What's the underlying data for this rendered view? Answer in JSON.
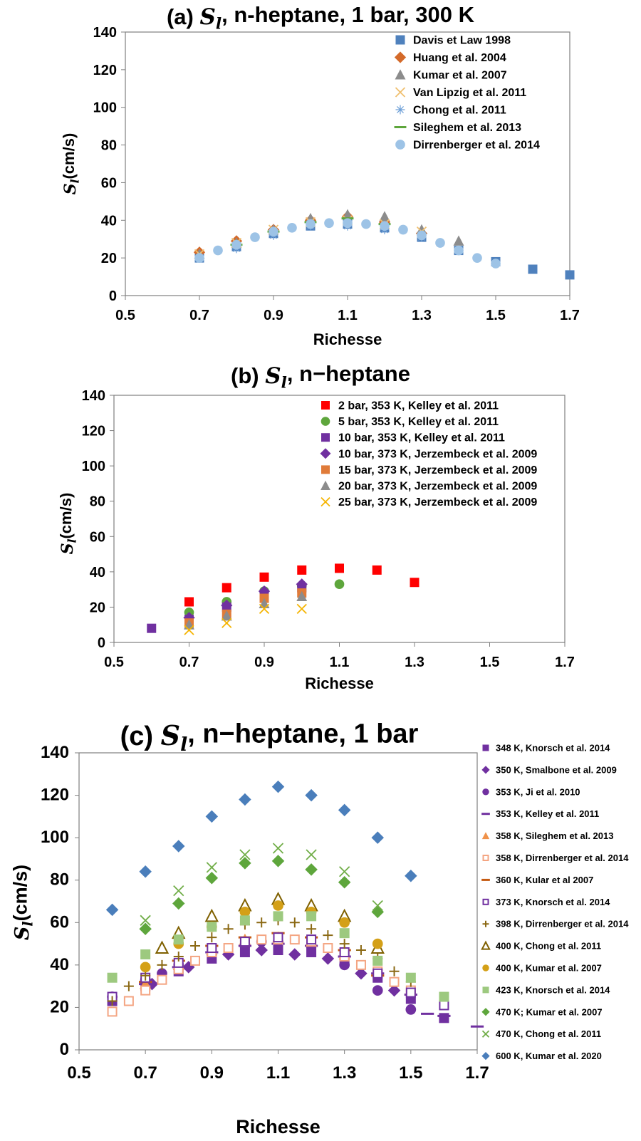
{
  "chart_data": [
    {
      "type": "scatter",
      "title": "(a) S_l, n-heptane, 1 bar, 300 K",
      "title_prefix": "(a) ",
      "title_symbol": "S",
      "title_sub": "l",
      "title_rest": ", n-heptane, 1 bar, 300 K",
      "xlabel": "Richesse",
      "ylabel_symbol": "S",
      "ylabel_sub": "l",
      "ylabel_rest": "(cm/s)",
      "xlim": [
        0.5,
        1.7
      ],
      "ylim": [
        0,
        140
      ],
      "xticks": [
        "0.5",
        "0.7",
        "0.9",
        "1.1",
        "1.3",
        "1.5",
        "1.7"
      ],
      "yticks": [
        "0",
        "20",
        "40",
        "60",
        "80",
        "100",
        "120",
        "140"
      ],
      "legend_position": "top-right",
      "series": [
        {
          "name": "Davis et Law 1998",
          "marker": "square",
          "color": "#4f81bd",
          "x": [
            0.7,
            0.8,
            0.9,
            1.0,
            1.1,
            1.2,
            1.3,
            1.4,
            1.5,
            1.6,
            1.7
          ],
          "y": [
            20,
            26,
            33,
            37,
            38,
            36,
            31,
            24,
            18,
            14,
            11
          ]
        },
        {
          "name": "Huang et al. 2004",
          "marker": "diamond",
          "color": "#d46a2a",
          "x": [
            0.7,
            0.8,
            0.9,
            1.0,
            1.1,
            1.2,
            1.3
          ],
          "y": [
            23,
            29,
            35,
            40,
            42,
            39,
            33
          ]
        },
        {
          "name": "Kumar et al. 2007",
          "marker": "triangle",
          "color": "#8c8c8c",
          "x": [
            0.7,
            0.8,
            0.9,
            1.0,
            1.1,
            1.2,
            1.3,
            1.4
          ],
          "y": [
            22,
            28,
            35,
            41,
            43,
            42,
            35,
            29
          ]
        },
        {
          "name": "Van Lipzig et al. 2011",
          "marker": "x",
          "color": "#f0c070",
          "x": [
            0.7,
            0.8,
            0.9,
            1.0,
            1.1,
            1.2,
            1.3
          ],
          "y": [
            22,
            28,
            35,
            39,
            40,
            38,
            34
          ]
        },
        {
          "name": "Chong et al. 2011",
          "marker": "asterisk",
          "color": "#6fa0d8",
          "x": [
            0.7,
            0.8,
            0.9,
            1.0,
            1.1,
            1.2,
            1.3,
            1.4
          ],
          "y": [
            20,
            25,
            32,
            37,
            37,
            35,
            31,
            24
          ]
        },
        {
          "name": "Sileghem et al. 2013",
          "marker": "dash",
          "color": "#5ea63c",
          "x": [
            0.8,
            0.9,
            1.0,
            1.1,
            1.2
          ],
          "y": [
            27,
            34,
            39,
            41,
            38
          ]
        },
        {
          "name": "Dirrenberger et al. 2014",
          "marker": "circle",
          "color": "#9dc3e6",
          "x": [
            0.7,
            0.75,
            0.8,
            0.85,
            0.9,
            0.95,
            1.0,
            1.05,
            1.1,
            1.15,
            1.2,
            1.25,
            1.3,
            1.35,
            1.4,
            1.45,
            1.5
          ],
          "y": [
            20,
            24,
            27,
            31,
            34,
            36,
            38,
            38.5,
            38.5,
            38,
            37,
            35,
            32,
            28,
            24,
            20,
            17
          ]
        }
      ]
    },
    {
      "type": "scatter",
      "title": "(b) S_l, n−heptane",
      "title_prefix": "(b) ",
      "title_symbol": "S",
      "title_sub": "l",
      "title_rest": ", n−heptane",
      "xlabel": "Richesse",
      "ylabel_symbol": "S",
      "ylabel_sub": "l",
      "ylabel_rest": "(cm/s)",
      "xlim": [
        0.5,
        1.7
      ],
      "ylim": [
        0,
        140
      ],
      "xticks": [
        "0.5",
        "0.7",
        "0.9",
        "1.1",
        "1.3",
        "1.5",
        "1.7"
      ],
      "yticks": [
        "0",
        "20",
        "40",
        "60",
        "80",
        "100",
        "120",
        "140"
      ],
      "legend_position": "top-right",
      "series": [
        {
          "name": "2 bar, 353 K, Kelley et al. 2011",
          "marker": "square",
          "color": "#ff0000",
          "x": [
            0.7,
            0.8,
            0.9,
            1.0,
            1.1,
            1.2,
            1.3
          ],
          "y": [
            23,
            31,
            37,
            41,
            42,
            41,
            34
          ]
        },
        {
          "name": "5 bar, 353 K, Kelley et al. 2011",
          "marker": "circle",
          "color": "#5ea63c",
          "x": [
            0.7,
            0.8,
            0.9,
            1.0,
            1.1
          ],
          "y": [
            17,
            23,
            29,
            32,
            33
          ]
        },
        {
          "name": "10 bar, 353 K, Kelley et al. 2011",
          "marker": "square",
          "color": "#7030a0",
          "x": [
            0.6,
            0.7,
            0.8,
            0.9,
            1.0
          ],
          "y": [
            8,
            13,
            20,
            27,
            31
          ]
        },
        {
          "name": "10 bar, 373 K, Jerzembeck et al. 2009",
          "marker": "diamond",
          "color": "#7030a0",
          "x": [
            0.7,
            0.8,
            0.9,
            1.0
          ],
          "y": [
            14,
            21,
            29,
            33
          ]
        },
        {
          "name": "15 bar, 373 K, Jerzembeck et al. 2009",
          "marker": "square",
          "color": "#e07b39",
          "x": [
            0.7,
            0.8,
            0.9,
            1.0
          ],
          "y": [
            11,
            16,
            25,
            28
          ]
        },
        {
          "name": "20 bar, 373 K, Jerzembeck et al. 2009",
          "marker": "triangle",
          "color": "#8c8c8c",
          "x": [
            0.7,
            0.8,
            0.9,
            1.0
          ],
          "y": [
            10,
            15,
            22,
            26
          ]
        },
        {
          "name": "25 bar, 373 K, Jerzembeck et al. 2009",
          "marker": "x",
          "color": "#f5b400",
          "x": [
            0.7,
            0.8,
            0.9,
            1.0
          ],
          "y": [
            7,
            11,
            19,
            19
          ]
        }
      ]
    },
    {
      "type": "scatter",
      "title": "(c) S_l, n−heptane, 1 bar",
      "title_prefix": "(c) ",
      "title_symbol": "S",
      "title_sub": "l",
      "title_rest": ", n−heptane, 1 bar",
      "xlabel": "Richesse",
      "ylabel_symbol": "S",
      "ylabel_sub": "l",
      "ylabel_rest": "(cm/s)",
      "xlim": [
        0.5,
        1.7
      ],
      "ylim": [
        0,
        140
      ],
      "xticks": [
        "0.5",
        "0.7",
        "0.9",
        "1.1",
        "1.3",
        "1.5",
        "1.7"
      ],
      "yticks": [
        "0",
        "20",
        "40",
        "60",
        "80",
        "100",
        "120",
        "140"
      ],
      "legend_position": "right",
      "series": [
        {
          "name": "348 K, Knorsch et al. 2014",
          "marker": "square",
          "color": "#7030a0",
          "x": [
            0.6,
            0.7,
            0.8,
            0.9,
            1.0,
            1.1,
            1.2,
            1.3,
            1.4,
            1.5,
            1.6
          ],
          "y": [
            23,
            30,
            37,
            43,
            46,
            47,
            46,
            42,
            34,
            24,
            15
          ]
        },
        {
          "name": "350 K, Smalbone et al. 2009",
          "marker": "diamond",
          "color": "#7030a0",
          "x": [
            0.72,
            0.83,
            0.95,
            1.05,
            1.15,
            1.25,
            1.35,
            1.45
          ],
          "y": [
            31,
            39,
            45,
            47,
            45,
            43,
            36,
            28
          ]
        },
        {
          "name": "353 K, Ji et al. 2010",
          "marker": "circle",
          "color": "#7030a0",
          "x": [
            0.6,
            0.7,
            0.75,
            0.8,
            0.9,
            1.0,
            1.05,
            1.1,
            1.2,
            1.3,
            1.4,
            1.5
          ],
          "y": [
            25,
            33,
            36,
            40,
            45,
            49,
            51,
            51,
            49,
            40,
            28,
            19
          ]
        },
        {
          "name": "353 K, Kelley et al. 2011",
          "marker": "dash",
          "color": "#7030a0",
          "x": [
            0.7,
            0.8,
            0.9,
            1.0,
            1.1,
            1.2,
            1.3,
            1.4,
            1.5,
            1.55,
            1.6,
            1.7
          ],
          "y": [
            31,
            39,
            46,
            49,
            50,
            49,
            44,
            36,
            26,
            17,
            16,
            11
          ]
        },
        {
          "name": "358 K, Sileghem et al. 2013",
          "marker": "triangle",
          "color": "#f0924a",
          "x": [
            0.7,
            0.8,
            0.9,
            1.0,
            1.1,
            1.2,
            1.3
          ],
          "y": [
            31,
            40,
            47,
            52,
            53,
            51,
            45
          ]
        },
        {
          "name": "358 K, Dirrenberger et al. 2014",
          "marker": "square-open",
          "color": "#f4a582",
          "x": [
            0.6,
            0.65,
            0.7,
            0.75,
            0.8,
            0.85,
            0.9,
            0.95,
            1.0,
            1.05,
            1.1,
            1.15,
            1.2,
            1.25,
            1.3,
            1.35,
            1.4,
            1.45,
            1.5
          ],
          "y": [
            18,
            23,
            28,
            33,
            38,
            42,
            46,
            48,
            51,
            52,
            52,
            52,
            51,
            48,
            44,
            40,
            37,
            32,
            28
          ]
        },
        {
          "name": "360 K, Kular et al 2007",
          "marker": "dash",
          "color": "#c55a11",
          "x": [
            0.7,
            0.8,
            0.9,
            1.0,
            1.1,
            1.2,
            1.3,
            1.4
          ],
          "y": [
            32,
            42,
            49,
            53,
            55,
            53,
            47,
            35
          ]
        },
        {
          "name": "373 K, Knorsch et al. 2014",
          "marker": "square-open",
          "color": "#7030a0",
          "x": [
            0.6,
            0.7,
            0.8,
            0.9,
            1.0,
            1.1,
            1.2,
            1.3,
            1.4,
            1.5,
            1.6
          ],
          "y": [
            25,
            34,
            41,
            48,
            51,
            53,
            52,
            46,
            36,
            27,
            21
          ]
        },
        {
          "name": "398 K, Dirrenberger et al. 2014",
          "marker": "plus",
          "color": "#8b6914",
          "x": [
            0.6,
            0.65,
            0.7,
            0.75,
            0.8,
            0.85,
            0.9,
            0.95,
            1.0,
            1.05,
            1.1,
            1.15,
            1.2,
            1.25,
            1.3,
            1.35,
            1.4,
            1.45,
            1.5
          ],
          "y": [
            23,
            30,
            35,
            40,
            44,
            49,
            53,
            57,
            59,
            60,
            61,
            60,
            57,
            54,
            50,
            47,
            43,
            37,
            32
          ]
        },
        {
          "name": "400 K, Chong et al. 2011",
          "marker": "triangle-open",
          "color": "#7f6000",
          "x": [
            0.75,
            0.8,
            0.9,
            1.0,
            1.1,
            1.2,
            1.3,
            1.4
          ],
          "y": [
            48,
            55,
            63,
            68,
            71,
            68,
            63,
            48
          ]
        },
        {
          "name": "400 K, Kumar et al. 2007",
          "marker": "circle",
          "color": "#d4a017",
          "x": [
            0.7,
            0.8,
            0.9,
            1.0,
            1.1,
            1.2,
            1.3,
            1.4
          ],
          "y": [
            39,
            50,
            58,
            65,
            68,
            65,
            60,
            50
          ]
        },
        {
          "name": "423 K, Knorsch et al. 2014",
          "marker": "square",
          "color": "#9dc97f",
          "x": [
            0.6,
            0.7,
            0.8,
            0.9,
            1.0,
            1.1,
            1.2,
            1.3,
            1.4,
            1.5,
            1.6
          ],
          "y": [
            34,
            45,
            52,
            58,
            61,
            63,
            63,
            55,
            42,
            34,
            25
          ]
        },
        {
          "name": "470 K; Kumar et al. 2007",
          "marker": "diamond",
          "color": "#5ea63c",
          "x": [
            0.7,
            0.8,
            0.9,
            1.0,
            1.1,
            1.2,
            1.3,
            1.4
          ],
          "y": [
            57,
            69,
            81,
            88,
            89,
            85,
            79,
            65
          ]
        },
        {
          "name": "470 K, Chong et al. 2011",
          "marker": "x",
          "color": "#70ad47",
          "x": [
            0.7,
            0.8,
            0.9,
            1.0,
            1.1,
            1.2,
            1.3,
            1.4
          ],
          "y": [
            61,
            75,
            86,
            92,
            95,
            92,
            84,
            68
          ]
        },
        {
          "name": "600 K,  Kumar et al. 2020",
          "marker": "diamond",
          "color": "#4a7ebb",
          "x": [
            0.6,
            0.7,
            0.8,
            0.9,
            1.0,
            1.1,
            1.2,
            1.3,
            1.4,
            1.5
          ],
          "y": [
            66,
            84,
            96,
            110,
            118,
            124,
            120,
            113,
            100,
            82
          ]
        }
      ]
    }
  ]
}
